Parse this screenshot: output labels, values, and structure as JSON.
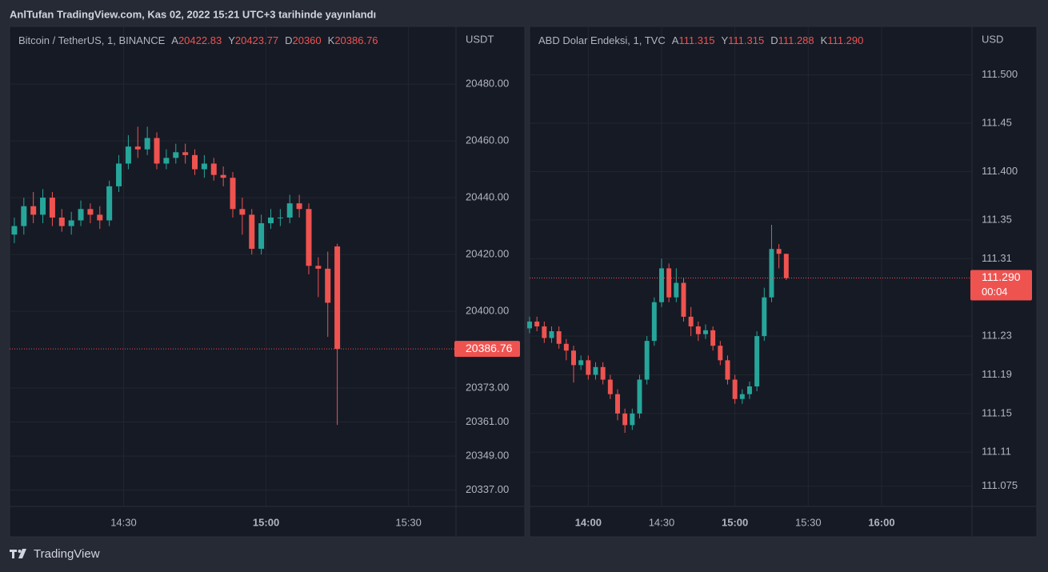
{
  "header": {
    "title": "AnlTufan TradingView.com, Kas 02, 2022 15:21 UTC+3 tarihinde yayınlandı"
  },
  "footer": {
    "brand": "TradingView"
  },
  "chart_data": [
    {
      "type": "candlestick",
      "title": "Bitcoin / TetherUS, 1, BINANCE",
      "currency": "USDT",
      "ohlc_legend": [
        {
          "key": "A",
          "value": 20422.83
        },
        {
          "key": "Y",
          "value": 20423.77
        },
        {
          "key": "D",
          "value": 20360.0
        },
        {
          "key": "K",
          "value": 20386.76
        }
      ],
      "up_color": "#26a69a",
      "down_color": "#ef5350",
      "grid": true,
      "x": [
        "14:07",
        "14:09",
        "14:11",
        "14:13",
        "14:15",
        "14:17",
        "14:19",
        "14:21",
        "14:23",
        "14:25",
        "14:27",
        "14:29",
        "14:31",
        "14:33",
        "14:35",
        "14:37",
        "14:39",
        "14:41",
        "14:43",
        "14:45",
        "14:47",
        "14:49",
        "14:51",
        "14:53",
        "14:55",
        "14:57",
        "14:59",
        "15:01",
        "15:03",
        "15:05",
        "15:07",
        "15:09",
        "15:11",
        "15:13",
        "15:15"
      ],
      "open": [
        20427,
        20430,
        20437,
        20434,
        20440,
        20433,
        20430,
        20432,
        20436,
        20434,
        20432,
        20444,
        20452,
        20458,
        20457,
        20461,
        20452,
        20454,
        20456,
        20455,
        20450,
        20452,
        20448,
        20447,
        20436,
        20434,
        20422,
        20431,
        20433,
        20433,
        20438,
        20436,
        20416,
        20415,
        20422.83
      ],
      "high": [
        20433,
        20440,
        20442,
        20443,
        20442,
        20436,
        20435,
        20439,
        20438,
        20437,
        20446,
        20455,
        20462,
        20465,
        20465,
        20463,
        20457,
        20459,
        20459,
        20457,
        20455,
        20454,
        20451,
        20449,
        20440,
        20436,
        20434,
        20436,
        20436,
        20441,
        20441,
        20438,
        20419,
        20421,
        20423.77
      ],
      "low": [
        20424,
        20427,
        20431,
        20431,
        20430,
        20428,
        20427,
        20430,
        20431,
        20429,
        20430,
        20442,
        20450,
        20454,
        20455,
        20450,
        20450,
        20452,
        20452,
        20448,
        20447,
        20446,
        20444,
        20433,
        20427,
        20420,
        20420,
        20429,
        20430,
        20431,
        20433,
        20413,
        20405,
        20391,
        20360
      ],
      "close": [
        20430,
        20437,
        20434,
        20440,
        20433,
        20430,
        20432,
        20436,
        20434,
        20432,
        20444,
        20452,
        20458,
        20457,
        20461,
        20452,
        20454,
        20456,
        20455,
        20450,
        20452,
        20448,
        20447,
        20436,
        20434,
        20422,
        20431,
        20433,
        20433,
        20438,
        20436,
        20416,
        20415,
        20403,
        20386.76
      ],
      "xlim": [
        "14:06",
        "15:40"
      ],
      "xticks": [
        "14:30",
        "15:00",
        "15:30"
      ],
      "ylim": [
        20331.3,
        20500.3
      ],
      "yticks": [
        {
          "value": 20480,
          "label": "20480.00"
        },
        {
          "value": 20460,
          "label": "20460.00"
        },
        {
          "value": 20440,
          "label": "20440.00"
        },
        {
          "value": 20420,
          "label": "20420.00"
        },
        {
          "value": 20400,
          "label": "20400.00"
        },
        {
          "value": 20373,
          "label": "20373.00"
        },
        {
          "value": 20361,
          "label": "20361.00"
        },
        {
          "value": 20349,
          "label": "20349.00"
        },
        {
          "value": 20337,
          "label": "20337.00"
        }
      ],
      "last_price": 20386.76
    },
    {
      "type": "candlestick",
      "title": "ABD Dolar Endeksi, 1, TVC",
      "currency": "USD",
      "ohlc_legend": [
        {
          "key": "A",
          "value": 111.315
        },
        {
          "key": "Y",
          "value": 111.315
        },
        {
          "key": "D",
          "value": 111.288
        },
        {
          "key": "K",
          "value": 111.29,
          "label": "111.290"
        }
      ],
      "up_color": "#26a69a",
      "down_color": "#ef5350",
      "grid": true,
      "x": [
        "13:36",
        "13:39",
        "13:42",
        "13:45",
        "13:48",
        "13:51",
        "13:54",
        "13:57",
        "14:00",
        "14:03",
        "14:06",
        "14:09",
        "14:12",
        "14:15",
        "14:18",
        "14:21",
        "14:24",
        "14:27",
        "14:30",
        "14:33",
        "14:36",
        "14:39",
        "14:42",
        "14:45",
        "14:48",
        "14:51",
        "14:54",
        "14:57",
        "15:00",
        "15:03",
        "15:06",
        "15:09",
        "15:12",
        "15:15",
        "15:18",
        "15:21"
      ],
      "open": [
        111.238,
        111.245,
        111.24,
        111.228,
        111.235,
        111.222,
        111.215,
        111.2,
        111.205,
        111.19,
        111.198,
        111.185,
        111.17,
        111.15,
        111.138,
        111.15,
        111.185,
        111.225,
        111.265,
        111.3,
        111.27,
        111.285,
        111.25,
        111.24,
        111.232,
        111.236,
        111.22,
        111.205,
        111.185,
        111.165,
        111.17,
        111.178,
        111.23,
        111.27,
        111.32,
        111.315
      ],
      "high": [
        111.25,
        111.25,
        111.245,
        111.24,
        111.24,
        111.227,
        111.22,
        111.21,
        111.21,
        111.203,
        111.203,
        111.19,
        111.175,
        111.155,
        111.155,
        111.19,
        111.23,
        111.27,
        111.31,
        111.305,
        111.3,
        111.29,
        111.26,
        111.245,
        111.242,
        111.24,
        111.225,
        111.21,
        111.19,
        111.175,
        111.183,
        111.235,
        111.28,
        111.345,
        111.325,
        111.315
      ],
      "low": [
        111.233,
        111.235,
        111.223,
        111.223,
        111.217,
        111.205,
        111.182,
        111.195,
        111.185,
        111.185,
        111.18,
        111.165,
        111.143,
        111.13,
        111.133,
        111.145,
        111.18,
        111.22,
        111.26,
        111.265,
        111.265,
        111.245,
        111.23,
        111.225,
        111.227,
        111.215,
        111.2,
        111.18,
        111.16,
        111.16,
        111.165,
        111.173,
        111.225,
        111.265,
        111.3,
        111.288
      ],
      "close": [
        111.245,
        111.24,
        111.228,
        111.235,
        111.222,
        111.215,
        111.2,
        111.205,
        111.19,
        111.198,
        111.185,
        111.17,
        111.15,
        111.138,
        111.15,
        111.185,
        111.225,
        111.265,
        111.3,
        111.27,
        111.285,
        111.25,
        111.24,
        111.232,
        111.236,
        111.22,
        111.205,
        111.185,
        111.165,
        111.17,
        111.178,
        111.23,
        111.27,
        111.32,
        111.315,
        111.29
      ],
      "xlim": [
        "13:36",
        "16:37"
      ],
      "xticks": [
        "14:00",
        "14:30",
        "15:00",
        "15:30",
        "16:00"
      ],
      "ylim": [
        111.054,
        111.55
      ],
      "yticks": [
        {
          "value": 111.5,
          "label": "111.500"
        },
        111.45,
        {
          "value": 111.4,
          "label": "111.400"
        },
        111.35,
        111.31,
        111.23,
        111.19,
        111.15,
        111.11,
        111.075
      ],
      "last_price": {
        "value": 111.29,
        "label": "111.290"
      },
      "countdown": "00:04"
    }
  ]
}
